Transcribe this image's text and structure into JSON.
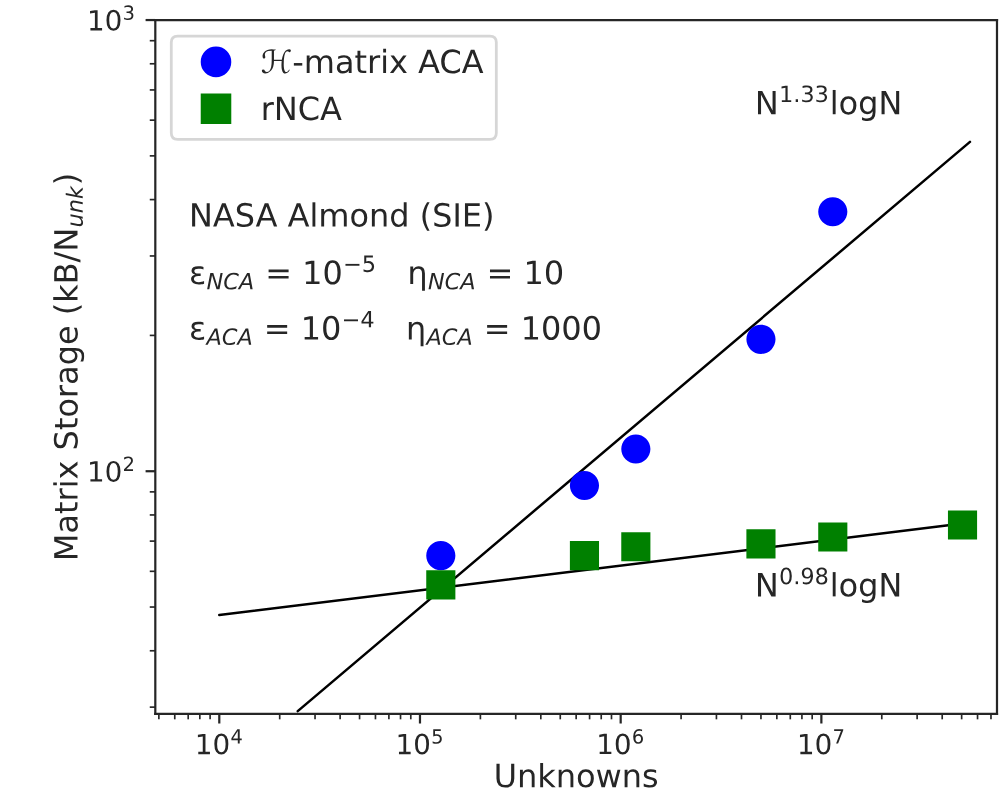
{
  "chart_data": {
    "type": "scatter",
    "xlabel": "Unknowns",
    "ylabel": "Matrix Storage (kB/N$_{unk}$)",
    "log": "xy",
    "grid": false,
    "legend": "top left",
    "xlim": [
      4800,
      75000000
    ],
    "ylim": [
      29,
      1000
    ],
    "xticks": [
      {
        "value": 10000,
        "label": "10$^{4}$"
      },
      {
        "value": 100000,
        "label": "10$^{5}$"
      },
      {
        "value": 1000000,
        "label": "10$^{6}$"
      },
      {
        "value": 10000000,
        "label": "10$^{7}$"
      }
    ],
    "yticks": [
      {
        "value": 100,
        "label": "10$^{2}$"
      },
      {
        "value": 1000,
        "label": "10$^{3}$"
      }
    ],
    "series": [
      {
        "name": "ℋ-matrix ACA",
        "marker": "circle",
        "color": "#0000ff",
        "x": [
          127000,
          660000,
          1190000,
          5000000,
          11400000
        ],
        "values": [
          65,
          93,
          112,
          196,
          376
        ]
      },
      {
        "name": "rNCA",
        "marker": "square",
        "color": "#008000",
        "x": [
          127000,
          660000,
          1190000,
          5000000,
          11400000,
          50500000
        ],
        "values": [
          56,
          65,
          68,
          69,
          71.5,
          76
        ]
      },
      {
        "type": "line",
        "color": "#000000",
        "x": [
          24600,
          55000000
        ],
        "values": [
          29.4,
          537
        ]
      },
      {
        "type": "line",
        "color": "#000000",
        "x": [
          10000,
          50500000
        ],
        "values": [
          48,
          76.6
        ]
      }
    ],
    "annotations": [
      "N$^{1.33}$logN",
      "N$^{0.98}$logN",
      "NASA Almond (SIE)",
      "ε$_{NCA}$ = 10$^{−5}$   η$_{NCA}$ = 10",
      "ε$_{ACA}$ = 10$^{−4}$   η$_{ACA}$ = 1000"
    ]
  }
}
